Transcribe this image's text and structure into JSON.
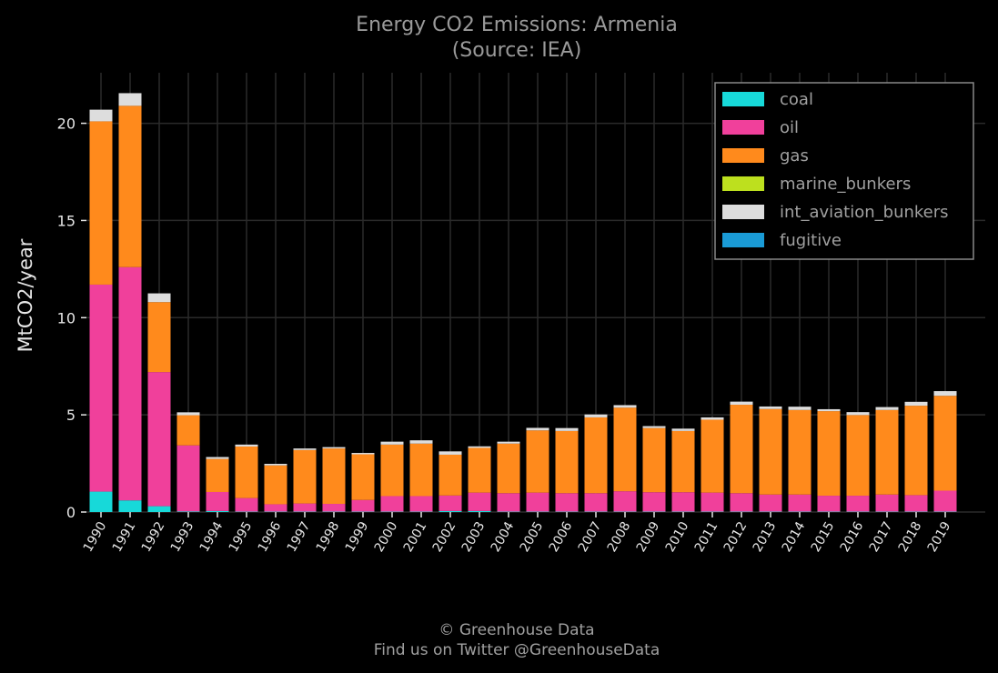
{
  "chart_data": {
    "type": "bar",
    "stacked": true,
    "title": "Energy CO2 Emissions: Armenia",
    "subtitle": "(Source: IEA)",
    "xlabel": "",
    "ylabel": "MtCO2/year",
    "ylim": [
      0,
      22.6
    ],
    "yticks": [
      0,
      5,
      10,
      15,
      20
    ],
    "grid": true,
    "legend_position": "top-right",
    "categories": [
      "1990",
      "1991",
      "1992",
      "1993",
      "1994",
      "1995",
      "1996",
      "1997",
      "1998",
      "1999",
      "2000",
      "2001",
      "2002",
      "2003",
      "2004",
      "2005",
      "2006",
      "2007",
      "2008",
      "2009",
      "2010",
      "2011",
      "2012",
      "2013",
      "2014",
      "2015",
      "2016",
      "2017",
      "2018",
      "2019"
    ],
    "series": [
      {
        "name": "coal",
        "color": "#17d9d9",
        "values": [
          1.05,
          0.6,
          0.3,
          0.03,
          0.05,
          0.02,
          0.02,
          0.02,
          0.02,
          0.02,
          0.02,
          0.02,
          0.05,
          0.05,
          0.02,
          0.02,
          0.02,
          0.02,
          0.02,
          0.02,
          0.02,
          0.02,
          0.02,
          0.02,
          0.02,
          0.02,
          0.02,
          0.02,
          0.02,
          0.02
        ]
      },
      {
        "name": "oil",
        "color": "#f0409b",
        "values": [
          10.65,
          12.0,
          6.9,
          3.4,
          0.98,
          0.7,
          0.38,
          0.42,
          0.4,
          0.6,
          0.8,
          0.8,
          0.8,
          0.95,
          0.95,
          0.98,
          0.95,
          0.95,
          1.05,
          1.0,
          1.0,
          0.98,
          0.95,
          0.88,
          0.88,
          0.82,
          0.82,
          0.88,
          0.85,
          1.08
        ]
      },
      {
        "name": "gas",
        "color": "#ff8a1c",
        "values": [
          8.4,
          8.3,
          3.6,
          1.55,
          1.7,
          2.65,
          2.0,
          2.75,
          2.85,
          2.35,
          2.65,
          2.7,
          2.1,
          2.3,
          2.55,
          3.2,
          3.2,
          3.9,
          4.3,
          3.3,
          3.15,
          3.75,
          4.55,
          4.4,
          4.35,
          4.35,
          4.15,
          4.35,
          4.6,
          4.88
        ]
      },
      {
        "name": "marine_bunkers",
        "color": "#bde01e",
        "values": [
          0,
          0,
          0,
          0,
          0,
          0,
          0,
          0,
          0,
          0,
          0,
          0,
          0,
          0,
          0,
          0,
          0,
          0,
          0,
          0,
          0,
          0,
          0,
          0,
          0,
          0,
          0,
          0,
          0,
          0
        ]
      },
      {
        "name": "int_aviation_bunkers",
        "color": "#dddddd",
        "values": [
          0.6,
          0.65,
          0.45,
          0.15,
          0.1,
          0.1,
          0.08,
          0.08,
          0.07,
          0.07,
          0.15,
          0.17,
          0.17,
          0.08,
          0.1,
          0.13,
          0.15,
          0.15,
          0.13,
          0.1,
          0.12,
          0.12,
          0.16,
          0.13,
          0.17,
          0.1,
          0.15,
          0.15,
          0.2,
          0.24
        ]
      },
      {
        "name": "fugitive",
        "color": "#1a9bd6",
        "values": [
          0,
          0,
          0,
          0,
          0,
          0,
          0,
          0,
          0,
          0,
          0,
          0,
          0,
          0,
          0,
          0,
          0,
          0,
          0,
          0,
          0,
          0,
          0,
          0,
          0,
          0,
          0,
          0,
          0,
          0
        ]
      }
    ]
  },
  "footer": {
    "line1": "© Greenhouse Data",
    "line2": "Find us on Twitter @GreenhouseData"
  },
  "colors": {
    "background": "#000000",
    "grid": "#2a2a2a",
    "text": "#e6e6e6",
    "legend_border": "#888888"
  }
}
